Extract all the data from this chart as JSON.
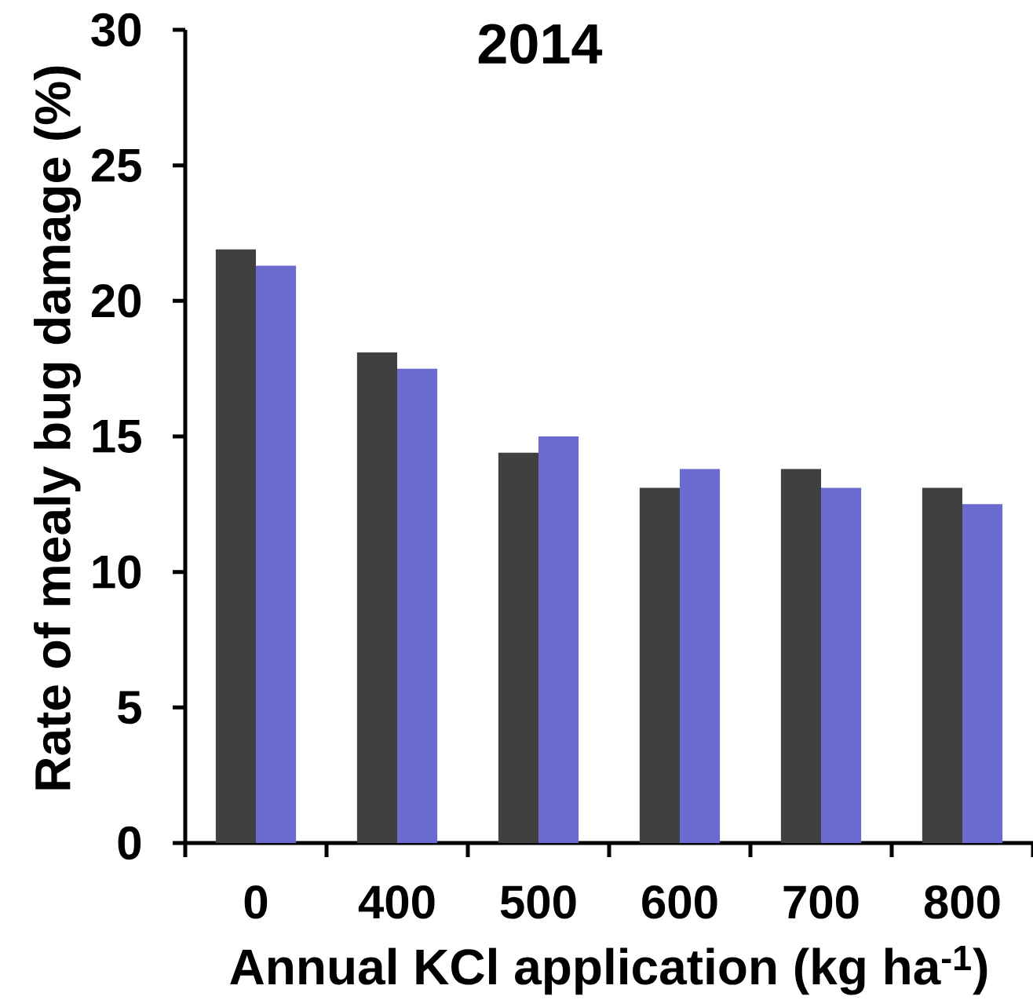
{
  "chart_data": {
    "type": "bar",
    "title": "2014",
    "xlabel": "Annual KCl application (kg ha$^{-1}$)",
    "ylabel": "Rate of mealy bug damage (%)",
    "categories": [
      "0",
      "400",
      "500",
      "600",
      "700",
      "800"
    ],
    "series": [
      {
        "color": "#404040",
        "values": [
          21.9,
          18.1,
          14.4,
          13.1,
          13.8,
          13.1
        ]
      },
      {
        "color": "#6b6bcf",
        "values": [
          21.3,
          17.5,
          15.0,
          13.8,
          13.1,
          12.5
        ]
      }
    ],
    "ylim": [
      0,
      30
    ],
    "yticks": [
      0,
      5,
      10,
      15,
      20,
      25,
      30
    ]
  }
}
